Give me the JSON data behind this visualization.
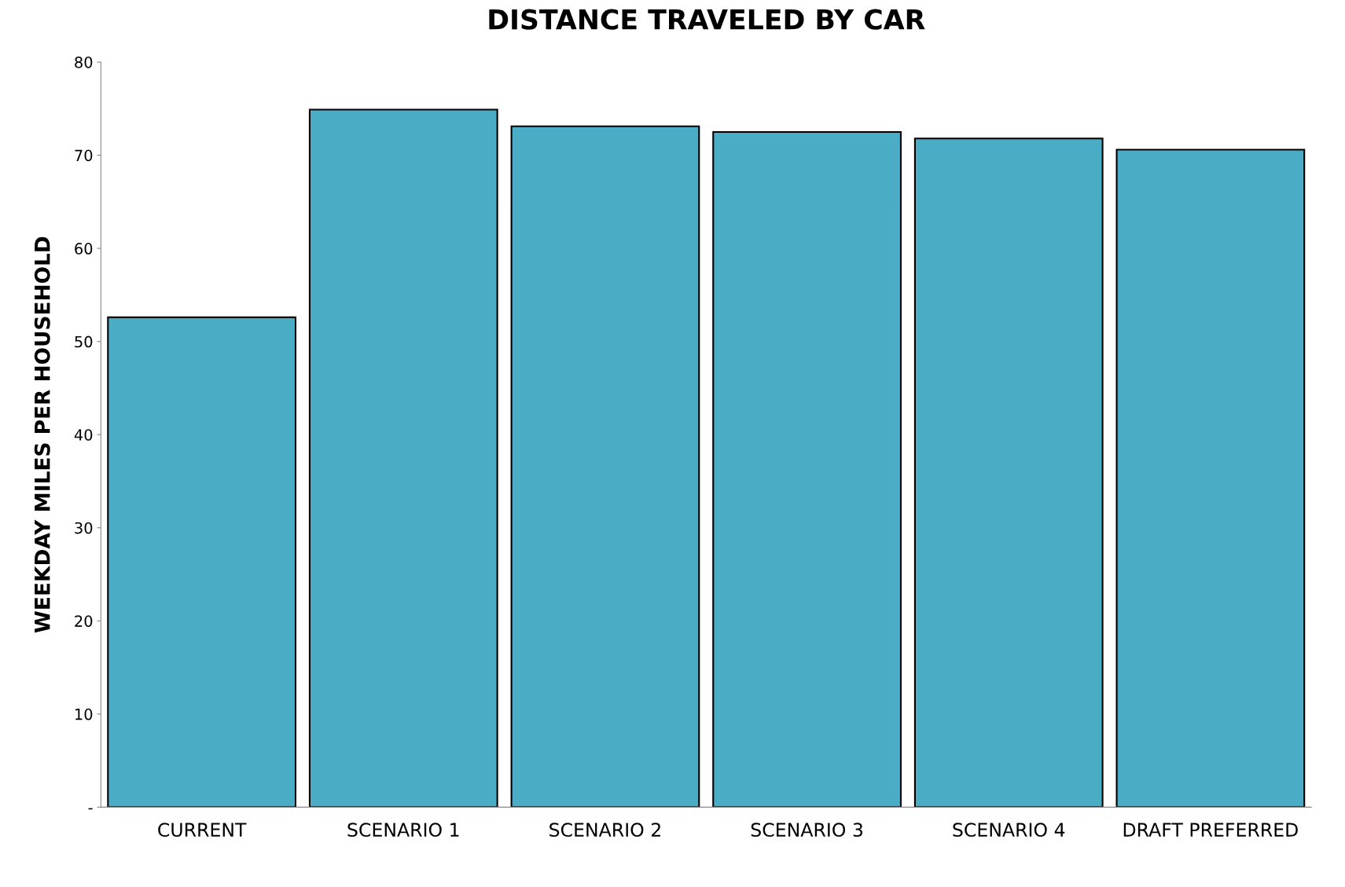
{
  "chart_data": {
    "type": "bar",
    "title": "DISTANCE TRAVELED BY CAR",
    "ylabel": "WEEKDAY MILES PER HOUSEHOLD",
    "categories": [
      "CURRENT",
      "SCENARIO 1",
      "SCENARIO 2",
      "SCENARIO 3",
      "SCENARIO 4",
      "DRAFT PREFERRED"
    ],
    "values": [
      52.6,
      74.9,
      73.1,
      72.5,
      71.8,
      70.6
    ],
    "color": "#4bacc6",
    "ylim": [
      0,
      80
    ],
    "yticks": [
      {
        "value": 0,
        "label": "-"
      },
      10,
      20,
      30,
      40,
      50,
      60,
      70,
      80
    ],
    "grid": false
  }
}
